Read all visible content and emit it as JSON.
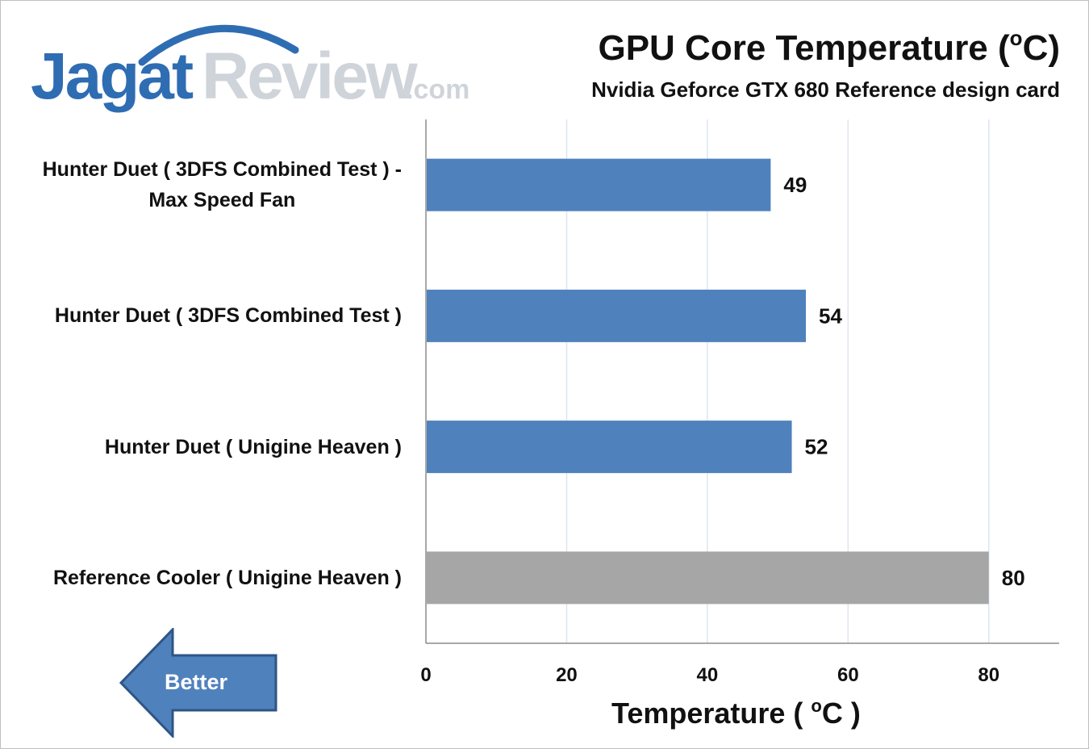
{
  "logo": {
    "part1": "Jagat",
    "part2": "Review",
    "part3": ".com"
  },
  "header": {
    "title": "GPU Core Temperature (",
    "title_sup": "o",
    "title_end": "C)",
    "subtitle": "Nvidia Geforce GTX 680 Reference design card"
  },
  "chart_data": {
    "type": "bar",
    "orientation": "horizontal",
    "title": "GPU Core Temperature (oC)",
    "subtitle": "Nvidia Geforce GTX 680 Reference design card",
    "categories": [
      [
        "Hunter Duet ( 3DFS Combined Test ) -",
        "Max Speed Fan"
      ],
      [
        "Hunter Duet ( 3DFS Combined Test )"
      ],
      [
        "Hunter Duet ( Unigine Heaven )"
      ],
      [
        "Reference Cooler ( Unigine Heaven )"
      ]
    ],
    "values": [
      49,
      54,
      52,
      80
    ],
    "value_labels": [
      "49",
      "54",
      "52",
      "80"
    ],
    "bar_colors": [
      "#4f81bd",
      "#4f81bd",
      "#4f81bd",
      "#a6a6a6"
    ],
    "xlabel_text": "Temperature ( ",
    "xlabel_sup": "o",
    "xlabel_end": "C )",
    "xlim": [
      0,
      90
    ],
    "xticks": [
      0,
      20,
      40,
      60,
      80
    ],
    "grid": true,
    "legend": "none"
  },
  "arrow": {
    "label": "Better",
    "color": "#4f81bd",
    "border": "#2e5585"
  }
}
